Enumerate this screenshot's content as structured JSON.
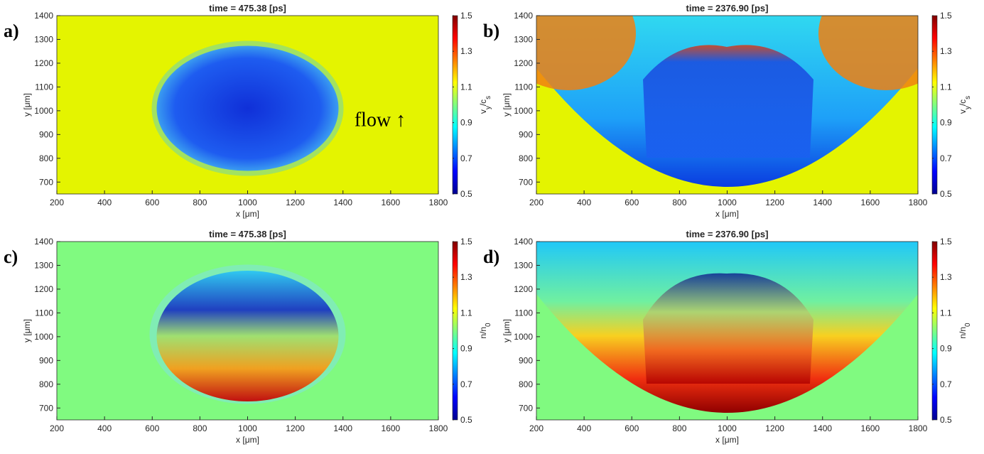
{
  "chart_data": [
    {
      "type": "heatmap",
      "panel_label": "a)",
      "title": "time = 475.38 [ps]",
      "xlabel": "x [μm]",
      "ylabel": "y [μm]",
      "colorbar_label": [
        "v",
        "y",
        "/c",
        "s"
      ],
      "annotation": "flow ↑",
      "colormap": "jet",
      "xlim": [
        200,
        1800
      ],
      "ylim": [
        650,
        1400
      ],
      "xticks": [
        200,
        400,
        600,
        800,
        1000,
        1200,
        1400,
        1600,
        1800
      ],
      "yticks": [
        700,
        800,
        900,
        1000,
        1100,
        1200,
        1300,
        1400
      ],
      "clim": [
        0.5,
        1.5
      ],
      "cticks": [
        0.5,
        0.7,
        0.9,
        1.1,
        1.3,
        1.5
      ]
    },
    {
      "type": "heatmap",
      "panel_label": "b)",
      "title": "time = 2376.90 [ps]",
      "xlabel": "x [μm]",
      "ylabel": "y [μm]",
      "colorbar_label": [
        "v",
        "y",
        "/c",
        "s"
      ],
      "colormap": "jet",
      "xlim": [
        200,
        1800
      ],
      "ylim": [
        650,
        1400
      ],
      "xticks": [
        200,
        400,
        600,
        800,
        1000,
        1200,
        1400,
        1600,
        1800
      ],
      "yticks": [
        700,
        800,
        900,
        1000,
        1100,
        1200,
        1300,
        1400
      ],
      "clim": [
        0.5,
        1.5
      ],
      "cticks": [
        0.5,
        0.7,
        0.9,
        1.1,
        1.3,
        1.5
      ]
    },
    {
      "type": "heatmap",
      "panel_label": "c)",
      "title": "time = 475.38 [ps]",
      "xlabel": "x [μm]",
      "ylabel": "y [μm]",
      "colorbar_label": [
        "n/n",
        "0"
      ],
      "colormap": "jet",
      "xlim": [
        200,
        1800
      ],
      "ylim": [
        650,
        1400
      ],
      "xticks": [
        200,
        400,
        600,
        800,
        1000,
        1200,
        1400,
        1600,
        1800
      ],
      "yticks": [
        700,
        800,
        900,
        1000,
        1100,
        1200,
        1300,
        1400
      ],
      "clim": [
        0.5,
        1.5
      ],
      "cticks": [
        0.5,
        0.7,
        0.9,
        1.1,
        1.3,
        1.5
      ]
    },
    {
      "type": "heatmap",
      "panel_label": "d)",
      "title": "time = 2376.90 [ps]",
      "xlabel": "x [μm]",
      "ylabel": "y [μm]",
      "colorbar_label": [
        "n/n",
        "0"
      ],
      "colormap": "jet",
      "xlim": [
        200,
        1800
      ],
      "ylim": [
        650,
        1400
      ],
      "xticks": [
        200,
        400,
        600,
        800,
        1000,
        1200,
        1400,
        1600,
        1800
      ],
      "yticks": [
        700,
        800,
        900,
        1000,
        1100,
        1200,
        1300,
        1400
      ],
      "clim": [
        0.5,
        1.5
      ],
      "cticks": [
        0.5,
        0.7,
        0.9,
        1.1,
        1.3,
        1.5
      ]
    }
  ]
}
